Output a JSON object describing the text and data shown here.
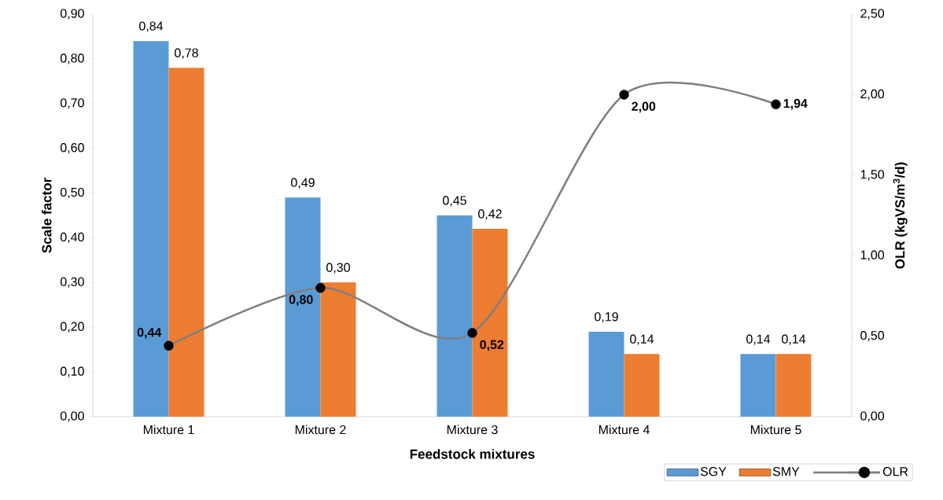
{
  "chart_data": {
    "type": "bar",
    "categories": [
      "Mixture 1",
      "Mixture 2",
      "Mixture 3",
      "Mixture 4",
      "Mixture 5"
    ],
    "xlabel": "Feedstock mixtures",
    "ylabel": "Scale factor",
    "y2label": "OLR (kgVS/m$^{3}$/d)",
    "series": [
      {
        "name": "SGY",
        "color": "#5b9bd5",
        "values": [
          0.84,
          0.49,
          0.45,
          0.19,
          0.14
        ],
        "value_labels": [
          "0,84",
          "0,49",
          "0,45",
          "0,19",
          "0,14"
        ]
      },
      {
        "name": "SMY",
        "color": "#ed7d31",
        "values": [
          0.78,
          0.3,
          0.42,
          0.14,
          0.14
        ],
        "value_labels": [
          "0,78",
          "0,30",
          "0,42",
          "0,14",
          "0,14"
        ]
      },
      {
        "name": "OLR",
        "type": "line",
        "axis": "y2",
        "color": "#7f7f7f",
        "marker": "circle",
        "values": [
          0.44,
          0.8,
          0.52,
          2.0,
          1.94
        ],
        "value_labels": [
          "0,44",
          "0,80",
          "0,52",
          "2,00",
          "1,94"
        ]
      }
    ],
    "ylim": [
      0,
      0.9
    ],
    "yticks": [
      {
        "value": 0,
        "label": "0,00"
      },
      {
        "value": 0.1,
        "label": "0,10"
      },
      {
        "value": 0.2,
        "label": "0,20"
      },
      {
        "value": 0.3,
        "label": "0,30"
      },
      {
        "value": 0.4,
        "label": "0,40"
      },
      {
        "value": 0.5,
        "label": "0,50"
      },
      {
        "value": 0.6,
        "label": "0,60"
      },
      {
        "value": 0.7,
        "label": "0,70"
      },
      {
        "value": 0.8,
        "label": "0,80"
      },
      {
        "value": 0.9,
        "label": "0,90"
      }
    ],
    "y2lim": [
      0,
      2.5
    ],
    "y2ticks": [
      {
        "value": 0,
        "label": "0,00"
      },
      {
        "value": 0.5,
        "label": "0,50"
      },
      {
        "value": 1.0,
        "label": "1,00"
      },
      {
        "value": 1.5,
        "label": "1,50"
      },
      {
        "value": 2.0,
        "label": "2,00"
      },
      {
        "value": 2.5,
        "label": "2,50"
      }
    ],
    "grid": false,
    "legend": "bottom right"
  }
}
